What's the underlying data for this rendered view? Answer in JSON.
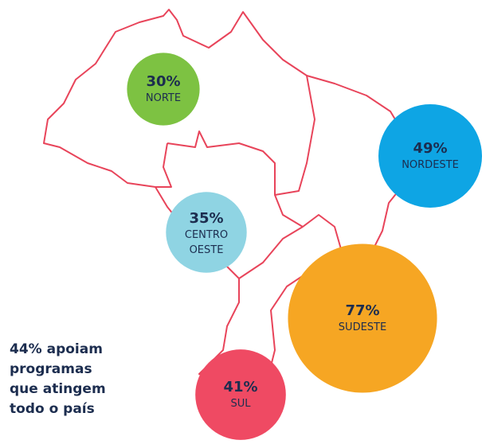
{
  "chart_data": {
    "type": "bubble-map",
    "categories": [
      "NORTE",
      "NORDESTE",
      "CENTRO OESTE",
      "SUDESTE",
      "SUL"
    ],
    "values": [
      30,
      49,
      35,
      77,
      41
    ],
    "value_labels": [
      "30%",
      "49%",
      "35%",
      "77%",
      "41%"
    ],
    "colors": [
      "#7dc242",
      "#0ea5e4",
      "#8fd4e3",
      "#f6a623",
      "#ef4a63"
    ],
    "annotation": [
      "44% apoiam",
      "programas",
      "que atingem",
      "todo o país"
    ]
  }
}
